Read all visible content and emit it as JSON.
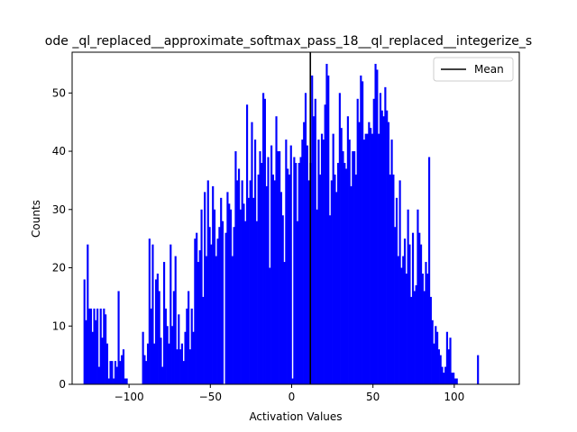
{
  "chart_data": {
    "type": "bar",
    "title": "ode _ql_replaced__approximate_softmax_pass_18__ql_replaced__integerize_s",
    "xlabel": "Activation Values",
    "ylabel": "Counts",
    "xlim": [
      -135,
      140
    ],
    "ylim": [
      0,
      57
    ],
    "xticks": [
      -100,
      -50,
      0,
      50,
      100
    ],
    "yticks": [
      0,
      10,
      20,
      30,
      40,
      50
    ],
    "grid": false,
    "legend": {
      "placement": "top-right",
      "entries": [
        {
          "label": "Mean",
          "color": "#000000"
        }
      ]
    },
    "bar_color": "#0000ff",
    "mean": 11.5,
    "bin_start": -128,
    "bin_width": 1,
    "values": [
      18,
      11,
      24,
      13,
      13,
      9,
      13,
      11,
      13,
      3,
      13,
      8,
      13,
      12,
      7,
      1,
      4,
      4,
      1,
      4,
      3,
      16,
      4,
      5,
      6,
      1,
      1,
      0,
      0,
      0,
      0,
      0,
      0,
      0,
      0,
      0,
      9,
      5,
      4,
      7,
      25,
      13,
      24,
      7,
      18,
      19,
      16,
      8,
      3,
      21,
      13,
      10,
      7,
      24,
      10,
      16,
      22,
      6,
      12,
      6,
      7,
      4,
      9,
      13,
      16,
      6,
      13,
      9,
      25,
      26,
      21,
      23,
      30,
      15,
      33,
      22,
      35,
      27,
      24,
      34,
      30,
      22,
      25,
      27,
      32,
      28,
      0,
      26,
      33,
      31,
      30,
      22,
      27,
      40,
      35,
      37,
      30,
      35,
      31,
      28,
      48,
      32,
      35,
      45,
      32,
      42,
      28,
      36,
      40,
      38,
      50,
      49,
      34,
      39,
      20,
      41,
      36,
      35,
      46,
      40,
      40,
      33,
      29,
      21,
      42,
      37,
      36,
      41,
      1,
      39,
      38,
      28,
      38,
      39,
      42,
      45,
      50,
      41,
      35,
      38,
      53,
      46,
      49,
      30,
      42,
      36,
      43,
      42,
      48,
      55,
      53,
      29,
      35,
      43,
      36,
      33,
      38,
      50,
      44,
      40,
      38,
      37,
      46,
      42,
      34,
      40,
      40,
      36,
      49,
      45,
      53,
      52,
      42,
      43,
      43,
      45,
      44,
      43,
      49,
      55,
      54,
      43,
      50,
      47,
      46,
      51,
      47,
      45,
      36,
      42,
      36,
      27,
      32,
      22,
      35,
      20,
      22,
      25,
      19,
      30,
      24,
      15,
      26,
      16,
      17,
      30,
      26,
      24,
      19,
      16,
      21,
      19,
      39,
      15,
      11,
      7,
      10,
      9,
      6,
      5,
      3,
      2,
      3,
      9,
      6,
      8,
      2,
      2,
      1,
      1,
      0,
      0,
      0,
      0,
      0,
      0,
      0,
      0,
      0,
      0,
      0,
      0,
      5
    ]
  }
}
